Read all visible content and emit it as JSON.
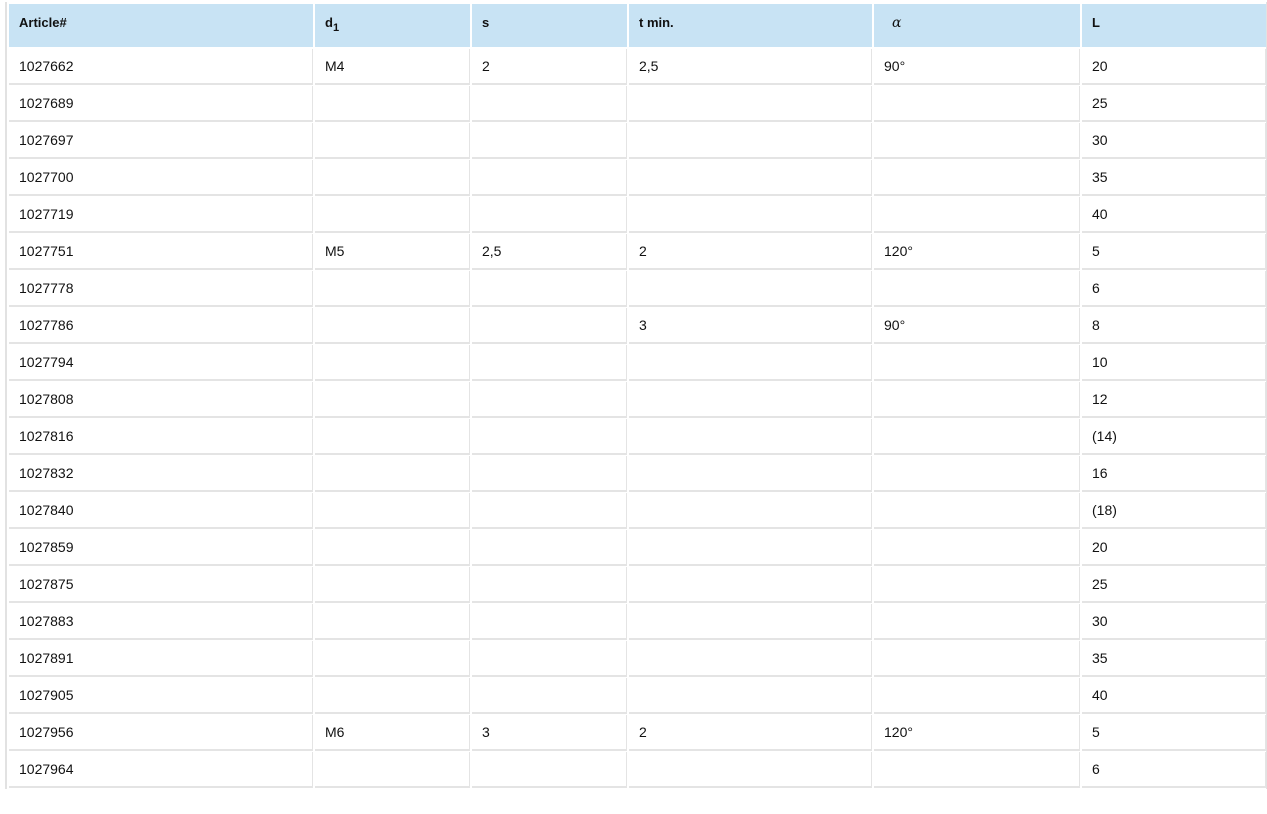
{
  "table": {
    "headers": {
      "article": "Article#",
      "d_main": "d",
      "d_sub": "1",
      "s": "s",
      "t": "t min.",
      "alpha": "α",
      "L": "L"
    },
    "rows": [
      [
        "1027662",
        "M4",
        "2",
        "2,5",
        "90°",
        "20"
      ],
      [
        "1027689",
        "",
        "",
        "",
        "",
        "25"
      ],
      [
        "1027697",
        "",
        "",
        "",
        "",
        "30"
      ],
      [
        "1027700",
        "",
        "",
        "",
        "",
        "35"
      ],
      [
        "1027719",
        "",
        "",
        "",
        "",
        "40"
      ],
      [
        "1027751",
        "M5",
        "2,5",
        "2",
        "120°",
        "5"
      ],
      [
        "1027778",
        "",
        "",
        "",
        "",
        "6"
      ],
      [
        "1027786",
        "",
        "",
        "3",
        "90°",
        "8"
      ],
      [
        "1027794",
        "",
        "",
        "",
        "",
        "10"
      ],
      [
        "1027808",
        "",
        "",
        "",
        "",
        "12"
      ],
      [
        "1027816",
        "",
        "",
        "",
        "",
        "(14)"
      ],
      [
        "1027832",
        "",
        "",
        "",
        "",
        "16"
      ],
      [
        "1027840",
        "",
        "",
        "",
        "",
        "(18)"
      ],
      [
        "1027859",
        "",
        "",
        "",
        "",
        "20"
      ],
      [
        "1027875",
        "",
        "",
        "",
        "",
        "25"
      ],
      [
        "1027883",
        "",
        "",
        "",
        "",
        "30"
      ],
      [
        "1027891",
        "",
        "",
        "",
        "",
        "35"
      ],
      [
        "1027905",
        "",
        "",
        "",
        "",
        "40"
      ],
      [
        "1027956",
        "M6",
        "3",
        "2",
        "120°",
        "5"
      ],
      [
        "1027964",
        "",
        "",
        "",
        "",
        "6"
      ]
    ]
  },
  "colors": {
    "header_bg": "#c8e3f4",
    "border": "#e4e4e4"
  }
}
